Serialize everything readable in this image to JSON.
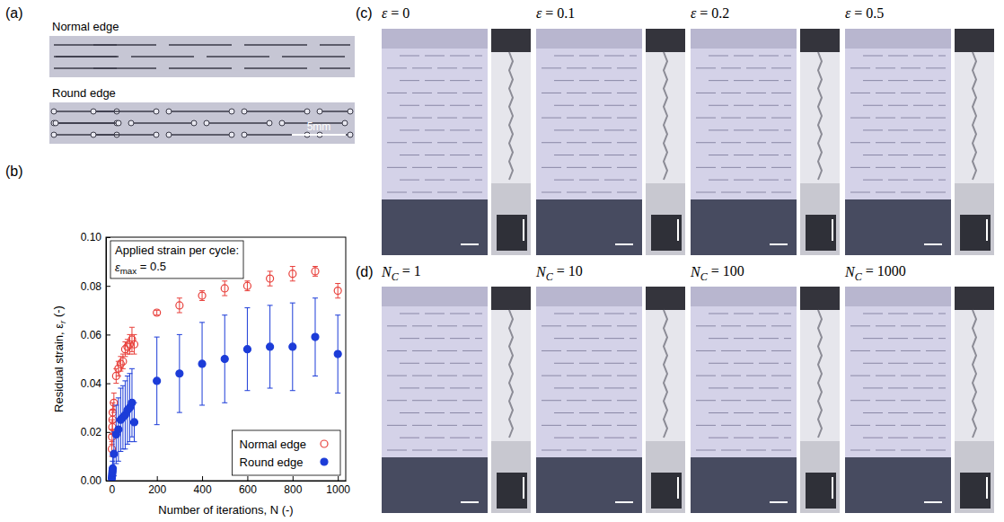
{
  "chart_data": {
    "type": "scatter",
    "x_label": "Number of iterations, N (-)",
    "y_label": [
      {
        "text": "Residual strain, ε"
      },
      {
        "text": "r",
        "sub": true
      },
      {
        "text": " (-)"
      }
    ],
    "annotation": [
      [
        {
          "text": "Applied strain per cycle:"
        }
      ],
      [
        {
          "text": "ε"
        },
        {
          "text": "max",
          "sub": true
        },
        {
          "text": " = 0.5"
        }
      ]
    ],
    "x": [
      1,
      2,
      3,
      4,
      5,
      10,
      20,
      30,
      40,
      50,
      60,
      70,
      80,
      90,
      100,
      200,
      300,
      400,
      500,
      600,
      700,
      800,
      900,
      1000
    ],
    "series": [
      {
        "name": "Normal edge",
        "color": "#e8413c",
        "marker": "open-circle",
        "values": [
          0.013,
          0.018,
          0.022,
          0.025,
          0.028,
          0.032,
          0.043,
          0.046,
          0.048,
          0.049,
          0.054,
          0.055,
          0.056,
          0.058,
          0.056,
          0.069,
          0.072,
          0.076,
          0.079,
          0.08,
          0.083,
          0.085,
          0.086,
          0.078
        ],
        "error": [
          0.003,
          0.003,
          0.003,
          0.004,
          0.004,
          0.004,
          0.003,
          0.003,
          0.003,
          0.003,
          0.003,
          0.003,
          0.004,
          0.005,
          0.004,
          0.001,
          0.003,
          0.002,
          0.003,
          0.002,
          0.003,
          0.003,
          0.002,
          0.003
        ]
      },
      {
        "name": "Round edge",
        "color": "#1c3cd8",
        "marker": "filled-circle",
        "values": [
          0.001,
          0.002,
          0.003,
          0.004,
          0.005,
          0.011,
          0.019,
          0.021,
          0.025,
          0.026,
          0.027,
          0.029,
          0.03,
          0.032,
          0.024,
          0.041,
          0.044,
          0.048,
          0.05,
          0.054,
          0.055,
          0.055,
          0.059,
          0.052
        ],
        "error": [
          0.001,
          0.002,
          0.003,
          0.004,
          0.005,
          0.009,
          0.012,
          0.013,
          0.013,
          0.013,
          0.014,
          0.014,
          0.014,
          0.014,
          0.008,
          0.018,
          0.016,
          0.017,
          0.018,
          0.017,
          0.017,
          0.018,
          0.016,
          0.016
        ]
      }
    ],
    "xlim": [
      -25,
      1035
    ],
    "ylim": [
      0,
      0.1
    ],
    "xticks": [
      0,
      200,
      400,
      600,
      800,
      1000
    ],
    "yticks": [
      {
        "value": 0,
        "label": "0.00"
      },
      0.02,
      0.04,
      0.06,
      0.08,
      {
        "value": 0.1,
        "label": "0.10"
      }
    ],
    "legend": "lower right",
    "grid": false
  },
  "figure": {
    "panel_a": {
      "label": "(a)",
      "captions": [
        "Normal edge",
        "Round edge"
      ],
      "scale_bar": "5mm"
    },
    "panel_b": {
      "label": "(b)"
    },
    "panel_c": {
      "label": "(c)",
      "frames": [
        [
          {
            "text": "ε"
          },
          {
            "text": " = 0"
          }
        ],
        [
          {
            "text": "ε"
          },
          {
            "text": " = 0.1"
          }
        ],
        [
          {
            "text": "ε"
          },
          {
            "text": " = 0.2"
          }
        ],
        [
          {
            "text": "ε"
          },
          {
            "text": " = 0.5"
          }
        ]
      ]
    },
    "panel_d": {
      "label": "(d)",
      "frames": [
        [
          {
            "text": "N"
          },
          {
            "text": "C",
            "sub": true
          },
          {
            "text": " = 1"
          }
        ],
        [
          {
            "text": "N"
          },
          {
            "text": "C",
            "sub": true
          },
          {
            "text": " = 10"
          }
        ],
        [
          {
            "text": "N"
          },
          {
            "text": "C",
            "sub": true
          },
          {
            "text": " = 100"
          }
        ],
        [
          {
            "text": "N"
          },
          {
            "text": "C",
            "sub": true
          },
          {
            "text": " = 1000"
          }
        ]
      ]
    }
  }
}
